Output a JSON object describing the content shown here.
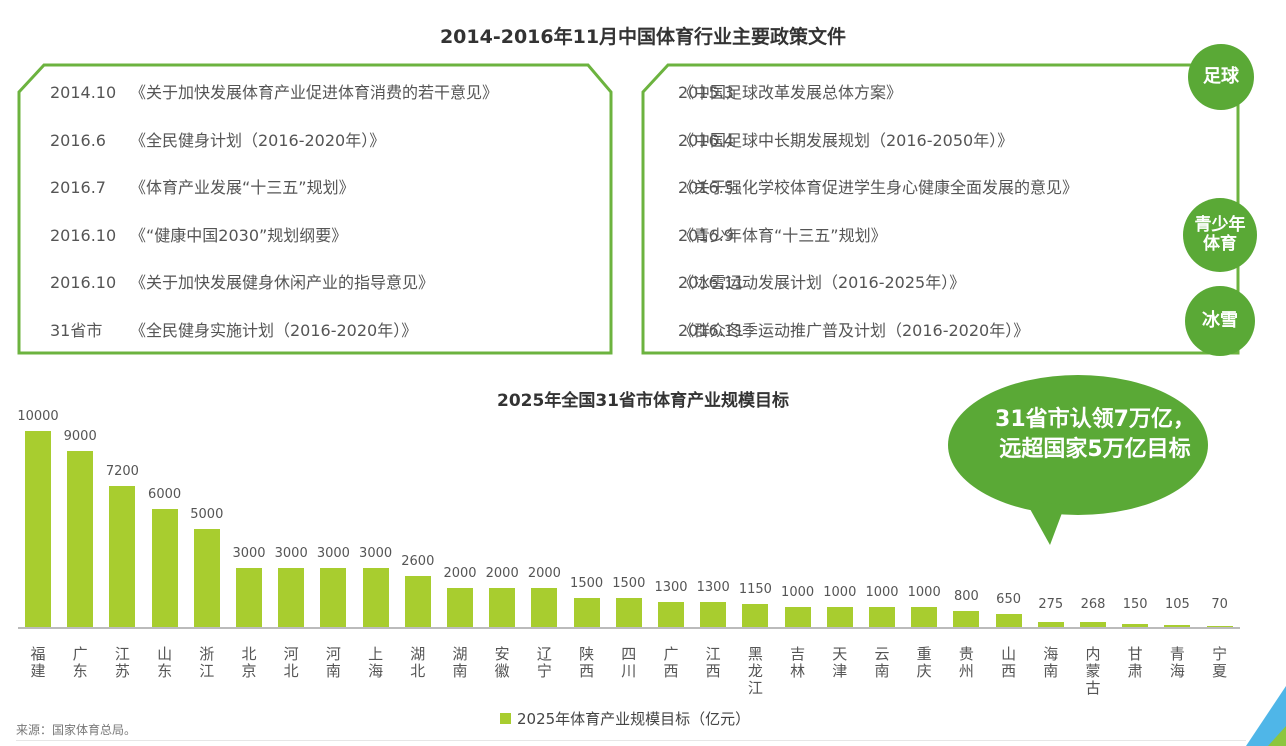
{
  "header": {
    "title": "2014-2016年11月中国体育行业主要政策文件"
  },
  "policies_left": [
    {
      "date": "2014.10",
      "title": "《关于加快发展体育产业促进体育消费的若干意见》"
    },
    {
      "date": "2016.6",
      "title": "《全民健身计划（2016-2020年）》"
    },
    {
      "date": "2016.7",
      "title": "《体育产业发展“十三五”规划》"
    },
    {
      "date": "2016.10",
      "title": "《“健康中国2030”规划纲要》"
    },
    {
      "date": "2016.10",
      "title": "《关于加快发展健身休闲产业的指导意见》"
    },
    {
      "date": "31省市",
      "title": "《全民健身实施计划（2016-2020年）》"
    }
  ],
  "policies_right": [
    {
      "date": "2015.3",
      "title": "《中国足球改革发展总体方案》"
    },
    {
      "date": "2016.4",
      "title": "《中国足球中长期发展规划（2016-2050年）》"
    },
    {
      "date": "2016.5",
      "title": "《关于强化学校体育促进学生身心健康全面发展的意见》"
    },
    {
      "date": "2016.9",
      "title": "《青少年体育“十三五”规划》"
    },
    {
      "date": "2016.11",
      "title": "《冰雪运动发展计划（2016-2025年）》"
    },
    {
      "date": "2016.11",
      "title": "《群众冬季运动推广普及计划（2016-2020年）》"
    }
  ],
  "tags": {
    "football": "足球",
    "youth_line1": "青少年",
    "youth_line2": "体育",
    "ice_snow": "冰雪"
  },
  "callout": {
    "line1": "31省市认领7万亿，",
    "line2": "远超国家5万亿目标"
  },
  "legend": {
    "label": "2025年体育产业规模目标（亿元）"
  },
  "source": "来源：国家体育总局。",
  "colors": {
    "bar": "#a8cd2f",
    "accent_green": "#5aa936",
    "border_green": "#6cb33f"
  },
  "chart_data": {
    "type": "bar",
    "title": "2025年全国31省市体育产业规模目标",
    "xlabel": "",
    "ylabel": "",
    "legend": [
      "2025年体育产业规模目标（亿元）"
    ],
    "legend_position": "bottom",
    "grid": false,
    "ylim": [
      0,
      10000
    ],
    "categories": [
      "福建",
      "广东",
      "江苏",
      "山东",
      "浙江",
      "北京",
      "河北",
      "河南",
      "上海",
      "湖北",
      "湖南",
      "安徽",
      "辽宁",
      "陕西",
      "四川",
      "广西",
      "江西",
      "黑龙江",
      "吉林",
      "天津",
      "云南",
      "重庆",
      "贵州",
      "山西",
      "海南",
      "内蒙古",
      "甘肃",
      "青海",
      "宁夏"
    ],
    "values": [
      10000,
      9000,
      7200,
      6000,
      5000,
      3000,
      3000,
      3000,
      3000,
      2600,
      2000,
      2000,
      2000,
      1500,
      1500,
      1300,
      1300,
      1150,
      1000,
      1000,
      1000,
      1000,
      800,
      650,
      275,
      268,
      150,
      105,
      70
    ],
    "series": [
      {
        "name": "2025年体育产业规模目标（亿元）",
        "values": [
          10000,
          9000,
          7200,
          6000,
          5000,
          3000,
          3000,
          3000,
          3000,
          2600,
          2000,
          2000,
          2000,
          1500,
          1500,
          1300,
          1300,
          1150,
          1000,
          1000,
          1000,
          1000,
          800,
          650,
          275,
          268,
          150,
          105,
          70
        ]
      }
    ],
    "annotations": [
      "31省市认领7万亿，远超国家5万亿目标"
    ]
  }
}
